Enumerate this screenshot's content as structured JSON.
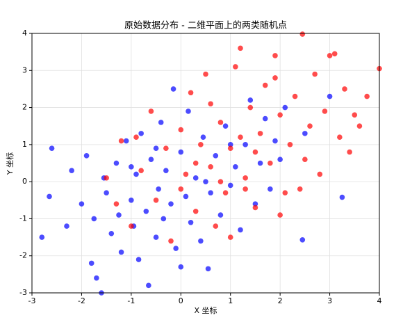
{
  "chart_data": {
    "type": "scatter",
    "title": "原始数据分布 - 二维平面上的两类随机点",
    "x_label": "X 坐标",
    "y_label": "Y 坐标",
    "xlim": [
      -3,
      4
    ],
    "ylim": [
      -3,
      4
    ],
    "xticks": [
      -3,
      -2,
      -1,
      0,
      1,
      2,
      3,
      4
    ],
    "yticks": [
      -3,
      -2,
      -1,
      0,
      1,
      2,
      3,
      4
    ],
    "grid": true,
    "series": [
      {
        "color": "#0000ff",
        "x": [
          -2.8,
          -2.6,
          -2.65,
          -2.3,
          -2.2,
          -2.0,
          -1.9,
          -1.8,
          -1.75,
          -1.7,
          -1.6,
          -1.55,
          -1.5,
          -1.4,
          -1.3,
          -1.25,
          -1.2,
          -1.1,
          -1.0,
          -0.95,
          -0.9,
          -0.85,
          -0.8,
          -0.7,
          -0.65,
          -0.6,
          -0.5,
          -0.45,
          -0.4,
          -0.35,
          -0.3,
          -0.2,
          -0.15,
          -0.1,
          0.0,
          0.0,
          0.1,
          0.15,
          0.2,
          0.3,
          0.4,
          0.45,
          0.55,
          0.6,
          0.7,
          0.8,
          0.9,
          1.0,
          1.1,
          1.2,
          1.3,
          1.4,
          1.5,
          1.6,
          1.7,
          1.8,
          1.9,
          2.0,
          2.1,
          2.45,
          2.5,
          3.25,
          3.0,
          0.5,
          -0.5,
          1.0,
          -1.0
        ],
        "values": [
          -1.5,
          0.9,
          -0.4,
          -1.2,
          0.3,
          -0.6,
          0.7,
          -2.2,
          -1.0,
          -2.6,
          -3.0,
          0.1,
          -0.3,
          -1.4,
          0.5,
          -0.9,
          -1.9,
          1.1,
          -0.5,
          -1.2,
          0.2,
          -2.1,
          1.3,
          -0.8,
          -2.8,
          0.6,
          -1.5,
          -0.2,
          1.6,
          -1.0,
          0.3,
          -0.6,
          2.5,
          -1.8,
          -2.3,
          0.8,
          -0.4,
          1.9,
          -1.1,
          0.1,
          -1.6,
          1.2,
          -2.35,
          -0.3,
          0.7,
          -0.9,
          1.5,
          -0.1,
          0.4,
          -1.3,
          1.0,
          2.2,
          -0.6,
          0.5,
          1.7,
          -0.2,
          1.1,
          0.6,
          2.0,
          -1.57,
          1.3,
          -0.42,
          2.3,
          0.0,
          0.9,
          1.0,
          0.4
        ]
      },
      {
        "color": "#ff0000",
        "x": [
          -1.5,
          -1.3,
          -1.2,
          -1.0,
          -0.8,
          -0.6,
          -0.5,
          -0.3,
          -0.2,
          0.0,
          0.1,
          0.2,
          0.3,
          0.4,
          0.5,
          0.6,
          0.7,
          0.8,
          0.9,
          1.0,
          1.1,
          1.2,
          1.3,
          1.4,
          1.5,
          1.6,
          1.7,
          1.8,
          1.9,
          2.0,
          2.1,
          2.2,
          2.3,
          2.45,
          2.5,
          2.6,
          2.7,
          2.8,
          2.9,
          3.0,
          3.1,
          3.2,
          3.3,
          3.4,
          3.5,
          3.6,
          3.75,
          4.0,
          2.0,
          1.0,
          0.3,
          1.2,
          0.8,
          1.5,
          -0.9,
          0.0,
          1.9,
          2.4,
          0.6,
          1.3
        ],
        "values": [
          0.1,
          -0.6,
          1.1,
          -1.2,
          0.3,
          1.9,
          -0.5,
          0.9,
          -1.6,
          1.4,
          0.2,
          2.4,
          -0.8,
          1.0,
          2.9,
          0.4,
          -1.2,
          1.6,
          -0.3,
          0.9,
          3.1,
          3.6,
          0.1,
          2.0,
          -0.7,
          1.3,
          2.6,
          0.5,
          3.4,
          1.8,
          -0.3,
          1.0,
          2.3,
          3.98,
          0.6,
          1.5,
          2.9,
          0.2,
          1.9,
          3.4,
          3.45,
          1.2,
          2.5,
          0.8,
          1.8,
          1.5,
          2.3,
          3.05,
          -0.9,
          -1.5,
          0.5,
          1.2,
          0.0,
          0.8,
          1.2,
          -0.2,
          2.8,
          -0.2,
          2.1,
          -0.2
        ]
      }
    ]
  }
}
